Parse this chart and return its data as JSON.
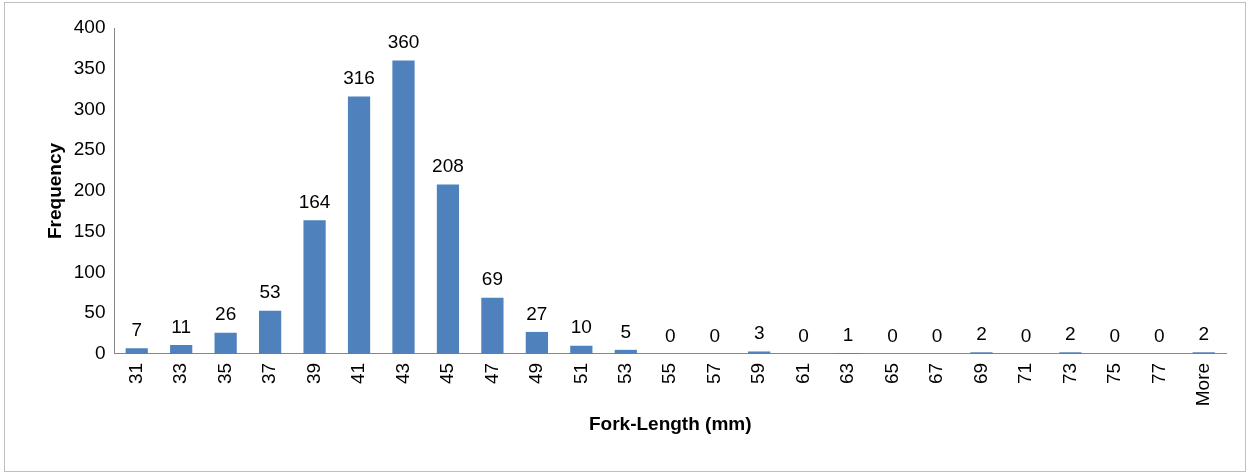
{
  "chart_data": {
    "type": "bar",
    "xlabel": "Fork-Length (mm)",
    "ylabel": "Frequency",
    "categories": [
      "31",
      "33",
      "35",
      "37",
      "39",
      "41",
      "43",
      "45",
      "47",
      "49",
      "51",
      "53",
      "55",
      "57",
      "59",
      "61",
      "63",
      "65",
      "67",
      "69",
      "71",
      "73",
      "75",
      "77",
      "More"
    ],
    "values": [
      7,
      11,
      26,
      53,
      164,
      316,
      360,
      208,
      69,
      27,
      10,
      5,
      0,
      0,
      3,
      0,
      1,
      0,
      0,
      2,
      0,
      2,
      0,
      0,
      2
    ],
    "color": "#4f81bd",
    "ylim": [
      0,
      400
    ],
    "yticks": [
      0,
      50,
      100,
      150,
      200,
      250,
      300,
      350,
      400
    ],
    "grid": false,
    "legend": false,
    "data_labels": true
  }
}
